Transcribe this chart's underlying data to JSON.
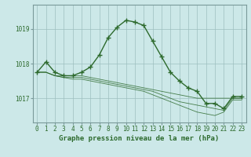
{
  "xlabel": "Graphe pression niveau de la mer (hPa)",
  "background_color": "#cce8e8",
  "plot_bg_color": "#cce8e8",
  "line_color": "#2d6a2d",
  "grid_color": "#9dbfbf",
  "axis_color": "#7a9a9a",
  "tick_label_color": "#2d6a2d",
  "hours": [
    0,
    1,
    2,
    3,
    4,
    5,
    6,
    7,
    8,
    9,
    10,
    11,
    12,
    13,
    14,
    15,
    16,
    17,
    18,
    19,
    20,
    21,
    22,
    23
  ],
  "series": [
    [
      1017.75,
      1017.75,
      1017.65,
      1017.65,
      1017.65,
      1017.65,
      1017.6,
      1017.55,
      1017.5,
      1017.45,
      1017.4,
      1017.35,
      1017.3,
      1017.25,
      1017.2,
      1017.15,
      1017.1,
      1017.05,
      1017.0,
      1017.0,
      1017.0,
      1017.0,
      1017.0,
      1017.0
    ],
    [
      1017.75,
      1017.75,
      1017.65,
      1017.6,
      1017.6,
      1017.6,
      1017.55,
      1017.5,
      1017.45,
      1017.4,
      1017.35,
      1017.3,
      1017.25,
      1017.2,
      1017.1,
      1017.0,
      1016.9,
      1016.85,
      1016.8,
      1016.75,
      1016.7,
      1016.65,
      1017.0,
      1017.0
    ],
    [
      1017.75,
      1017.75,
      1017.65,
      1017.6,
      1017.55,
      1017.55,
      1017.5,
      1017.45,
      1017.4,
      1017.35,
      1017.3,
      1017.25,
      1017.2,
      1017.1,
      1017.0,
      1016.9,
      1016.8,
      1016.7,
      1016.6,
      1016.55,
      1016.5,
      1016.6,
      1016.95,
      1016.95
    ]
  ],
  "main_series": [
    1017.75,
    1018.05,
    1017.75,
    1017.65,
    1017.65,
    1017.75,
    1017.9,
    1018.25,
    1018.75,
    1019.05,
    1019.25,
    1019.2,
    1019.1,
    1018.65,
    1018.2,
    1017.75,
    1017.5,
    1017.3,
    1017.2,
    1016.85,
    1016.85,
    1016.7,
    1017.05,
    1017.05
  ],
  "ylim": [
    1016.3,
    1019.7
  ],
  "yticks": [
    1017.0,
    1018.0,
    1019.0
  ],
  "marker": "+",
  "markersize": 4,
  "linewidth": 1.0,
  "thin_linewidth": 0.6,
  "xlabel_fontsize": 6.5,
  "tick_fontsize": 5.5
}
